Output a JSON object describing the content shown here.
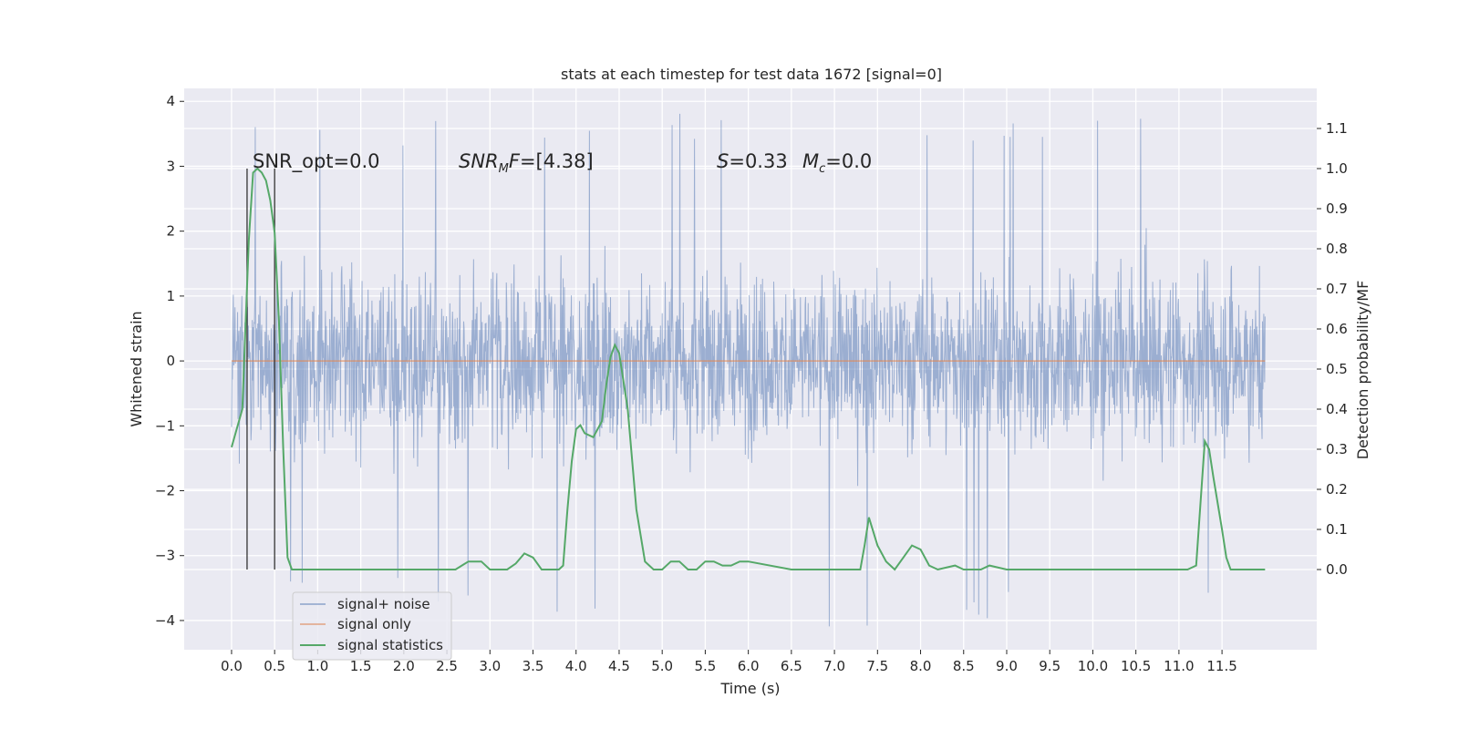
{
  "chart_data": {
    "type": "line",
    "title": "stats at each timestep for test data 1672 [signal=0]",
    "xlabel": "Time (s)",
    "ylabel_left": "Whitened strain",
    "ylabel_right": "Detection probability/MF",
    "xlim": [
      -0.55,
      12.6
    ],
    "ylim_left": [
      -4.45,
      4.2
    ],
    "ylim_right": [
      -0.2,
      1.2
    ],
    "x_ticks": [
      0.0,
      0.5,
      1.0,
      1.5,
      2.0,
      2.5,
      3.0,
      3.5,
      4.0,
      4.5,
      5.0,
      5.5,
      6.0,
      6.5,
      7.0,
      7.5,
      8.0,
      8.5,
      9.0,
      9.5,
      10.0,
      10.5,
      11.0,
      11.5
    ],
    "x_tick_labels": [
      "0.0",
      "0.5",
      "1.0",
      "1.5",
      "2.0",
      "2.5",
      "3.0",
      "3.5",
      "4.0",
      "4.5",
      "5.0",
      "5.5",
      "6.0",
      "6.5",
      "7.0",
      "7.5",
      "8.0",
      "8.5",
      "9.0",
      "9.5",
      "10.0",
      "10.5",
      "11.0",
      "11.5"
    ],
    "y_left_ticks": [
      -4,
      -3,
      -2,
      -1,
      0,
      1,
      2,
      3,
      4
    ],
    "y_left_tick_labels": [
      "−4",
      "−3",
      "−2",
      "−1",
      "0",
      "1",
      "2",
      "3",
      "4"
    ],
    "y_right_ticks": [
      0.0,
      0.1,
      0.2,
      0.3,
      0.4,
      0.5,
      0.6,
      0.7,
      0.8,
      0.9,
      1.0,
      1.1
    ],
    "y_right_tick_labels": [
      "0.0",
      "0.1",
      "0.2",
      "0.3",
      "0.4",
      "0.5",
      "0.6",
      "0.7",
      "0.8",
      "0.9",
      "1.0",
      "1.1"
    ],
    "grid": true,
    "legend_position": "lower-left",
    "annotations": {
      "snr_opt": "SNR_opt=0.0",
      "snr_mf_main": "SNR",
      "snr_mf_sub": "M",
      "snr_mf_tail": "F=[4.38]",
      "s_main": "S",
      "s_value": "=0.33",
      "mc_main": "M",
      "mc_sub": "c",
      "mc_value": "=0.0"
    },
    "vertical_lines_x": [
      0.18,
      0.5
    ],
    "series": [
      {
        "name": "signal+ noise",
        "axis": "left",
        "color": "#4c72b0",
        "opacity": 0.5,
        "x_range": [
          0.0,
          12.0
        ],
        "approx_envelope": [
          -2.2,
          2.3
        ],
        "max_peak": 3.85,
        "min_trough": -4.1
      },
      {
        "name": "signal only",
        "axis": "left",
        "color": "#dd8452",
        "x": [
          0.0,
          12.0
        ],
        "y": [
          0.0,
          0.0
        ]
      },
      {
        "name": "signal statistics",
        "axis": "right",
        "color": "#55a868",
        "x": [
          0.0,
          0.125,
          0.2,
          0.25,
          0.3,
          0.35,
          0.4,
          0.45,
          0.5,
          0.55,
          0.6,
          0.65,
          0.7,
          0.75,
          0.8,
          1.0,
          1.5,
          2.0,
          2.4,
          2.5,
          2.6,
          2.75,
          2.9,
          3.0,
          3.1,
          3.2,
          3.3,
          3.4,
          3.5,
          3.6,
          3.7,
          3.8,
          3.85,
          3.9,
          3.95,
          4.0,
          4.05,
          4.1,
          4.2,
          4.3,
          4.35,
          4.4,
          4.45,
          4.5,
          4.6,
          4.7,
          4.8,
          4.9,
          5.0,
          5.1,
          5.2,
          5.3,
          5.4,
          5.5,
          5.6,
          5.7,
          5.8,
          5.9,
          6.0,
          6.5,
          7.0,
          7.1,
          7.2,
          7.3,
          7.35,
          7.4,
          7.5,
          7.6,
          7.7,
          7.8,
          7.9,
          8.0,
          8.1,
          8.2,
          8.4,
          8.5,
          8.7,
          8.8,
          9.0,
          9.5,
          10.0,
          10.5,
          11.0,
          11.1,
          11.2,
          11.3,
          11.35,
          11.4,
          11.5,
          11.55,
          11.6,
          11.7,
          11.8,
          12.0
        ],
        "y": [
          0.305,
          0.4,
          0.82,
          0.99,
          1.0,
          0.99,
          0.97,
          0.92,
          0.84,
          0.62,
          0.3,
          0.03,
          0.0,
          0.0,
          0.0,
          0.0,
          0.0,
          0.0,
          0.0,
          0.0,
          0.0,
          0.02,
          0.02,
          0.0,
          0.0,
          0.0,
          0.015,
          0.04,
          0.03,
          0.0,
          0.0,
          0.0,
          0.01,
          0.15,
          0.27,
          0.35,
          0.36,
          0.34,
          0.33,
          0.37,
          0.46,
          0.53,
          0.56,
          0.54,
          0.4,
          0.15,
          0.02,
          0.0,
          0.0,
          0.02,
          0.02,
          0.0,
          0.0,
          0.02,
          0.02,
          0.01,
          0.01,
          0.02,
          0.02,
          0.0,
          0.0,
          0.0,
          0.0,
          0.0,
          0.06,
          0.13,
          0.06,
          0.02,
          0.0,
          0.03,
          0.06,
          0.05,
          0.01,
          0.0,
          0.01,
          0.0,
          0.0,
          0.01,
          0.0,
          0.0,
          0.0,
          0.0,
          0.0,
          0.0,
          0.01,
          0.32,
          0.3,
          0.23,
          0.1,
          0.03,
          0.0,
          0.0,
          0.0,
          0.0
        ]
      }
    ]
  }
}
